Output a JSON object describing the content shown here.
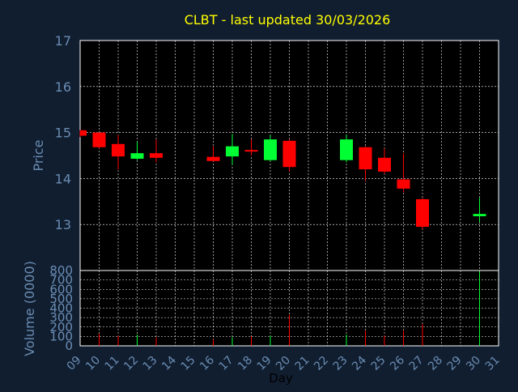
{
  "chart_data": {
    "type": "candlestick",
    "title": "CLBT - last updated 30/03/2026",
    "ticker": "CLBT",
    "colors": {
      "background": "#111e30",
      "plot_background": "#000000",
      "grid": "#ffffff",
      "axis_text": "#6a8cb2",
      "title": "#ffff00",
      "up": "#00ff33",
      "down": "#ff0000"
    },
    "price_panel": {
      "ylabel": "Price",
      "ylim": [
        12.0,
        17.0
      ],
      "yticks": [
        13,
        14,
        15,
        16,
        17
      ],
      "grid": true
    },
    "volume_panel": {
      "ylabel": "Volume (0000)",
      "ylim": [
        0,
        800
      ],
      "yticks": [
        0,
        100,
        200,
        300,
        400,
        500,
        600,
        700,
        800
      ],
      "grid": true
    },
    "xlabel": "Day",
    "xlim": [
      9,
      31
    ],
    "xticks": [
      "09",
      "10",
      "11",
      "12",
      "13",
      "14",
      "15",
      "16",
      "17",
      "18",
      "19",
      "20",
      "21",
      "22",
      "23",
      "24",
      "25",
      "26",
      "27",
      "28",
      "29",
      "30",
      "31"
    ],
    "candles": [
      {
        "day": 9,
        "open": 15.05,
        "high": 15.05,
        "low": 14.9,
        "close": 14.93,
        "volume": 0
      },
      {
        "day": 10,
        "open": 15.0,
        "high": 15.0,
        "low": 14.65,
        "close": 14.68,
        "volume": 130
      },
      {
        "day": 11,
        "open": 14.75,
        "high": 14.95,
        "low": 14.2,
        "close": 14.48,
        "volume": 110
      },
      {
        "day": 12,
        "open": 14.43,
        "high": 14.8,
        "low": 14.4,
        "close": 14.55,
        "volume": 120
      },
      {
        "day": 13,
        "open": 14.55,
        "high": 14.85,
        "low": 14.35,
        "close": 14.45,
        "volume": 90
      },
      {
        "day": 16,
        "open": 14.47,
        "high": 14.7,
        "low": 14.37,
        "close": 14.38,
        "volume": 70
      },
      {
        "day": 17,
        "open": 14.48,
        "high": 14.97,
        "low": 14.3,
        "close": 14.7,
        "volume": 90
      },
      {
        "day": 18,
        "open": 14.62,
        "high": 14.85,
        "low": 14.5,
        "close": 14.59,
        "volume": 100
      },
      {
        "day": 19,
        "open": 14.4,
        "high": 14.95,
        "low": 14.38,
        "close": 14.85,
        "volume": 110
      },
      {
        "day": 20,
        "open": 14.82,
        "high": 14.85,
        "low": 14.15,
        "close": 14.25,
        "volume": 330
      },
      {
        "day": 23,
        "open": 14.4,
        "high": 14.95,
        "low": 14.35,
        "close": 14.85,
        "volume": 120
      },
      {
        "day": 24,
        "open": 14.68,
        "high": 14.7,
        "low": 13.95,
        "close": 14.2,
        "volume": 160
      },
      {
        "day": 25,
        "open": 14.45,
        "high": 14.65,
        "low": 14.1,
        "close": 14.15,
        "volume": 110
      },
      {
        "day": 26,
        "open": 13.98,
        "high": 14.55,
        "low": 13.7,
        "close": 13.78,
        "volume": 160
      },
      {
        "day": 27,
        "open": 13.55,
        "high": 13.58,
        "low": 12.9,
        "close": 12.95,
        "volume": 230
      },
      {
        "day": 30,
        "open": 13.18,
        "high": 13.58,
        "low": 13.05,
        "close": 13.23,
        "volume": 790
      }
    ]
  }
}
